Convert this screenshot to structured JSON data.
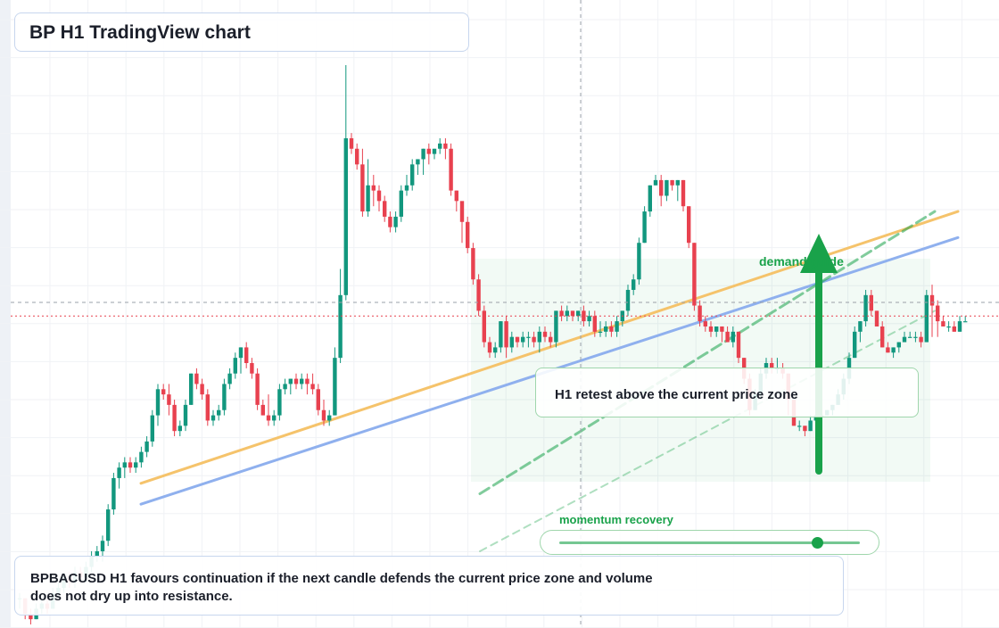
{
  "title": "BP H1 TradingView chart",
  "note": "BPBACUSD H1 favours continuation if the next candle defends the current price zone and volume does not dry up into resistance.",
  "retest_label": "H1 retest above the current price zone",
  "demand_label": "demand guide",
  "momentum": {
    "label": "momentum recovery",
    "level": 0.86
  },
  "colors": {
    "up": "#12977e",
    "down": "#e8414f",
    "accent_green": "#19a24a",
    "orange_line": "#f5c36b",
    "blue_line": "#8fb0ee",
    "current_price_line": "#e8414f"
  },
  "chart_data": {
    "type": "candlestick",
    "symbol": "BPBACUSD",
    "timeframe": "H1",
    "axes_labels_visible": false,
    "ylim": [
      0,
      100
    ],
    "current_price": 59,
    "candles": [
      [
        5,
        5,
        6,
        3
      ],
      [
        5,
        2,
        5,
        1
      ],
      [
        2,
        1,
        3,
        0
      ],
      [
        1,
        3,
        4,
        1
      ],
      [
        3,
        4,
        5,
        2
      ],
      [
        4,
        3,
        5,
        2
      ],
      [
        3,
        6,
        7,
        3
      ],
      [
        6,
        7,
        8,
        5
      ],
      [
        7,
        9,
        10,
        6
      ],
      [
        9,
        8,
        10,
        7
      ],
      [
        8,
        10,
        11,
        7
      ],
      [
        10,
        9,
        11,
        8
      ],
      [
        9,
        11,
        12,
        8
      ],
      [
        11,
        13,
        14,
        10
      ],
      [
        13,
        14,
        15,
        12
      ],
      [
        14,
        16,
        17,
        12
      ],
      [
        16,
        22,
        23,
        15
      ],
      [
        22,
        28,
        29,
        21
      ],
      [
        28,
        30,
        31,
        26
      ],
      [
        30,
        31,
        32,
        28
      ],
      [
        31,
        30,
        32,
        29
      ],
      [
        30,
        31,
        32,
        29
      ],
      [
        31,
        33,
        34,
        30
      ],
      [
        33,
        35,
        36,
        32
      ],
      [
        35,
        40,
        41,
        34
      ],
      [
        40,
        45,
        46,
        38
      ],
      [
        45,
        44,
        46,
        43
      ],
      [
        44,
        42,
        46,
        40
      ],
      [
        42,
        37,
        43,
        36
      ],
      [
        37,
        38,
        39,
        36
      ],
      [
        38,
        42,
        43,
        37
      ],
      [
        42,
        48,
        48,
        42
      ],
      [
        48,
        46,
        49,
        45
      ],
      [
        46,
        44,
        47,
        43
      ],
      [
        44,
        39,
        45,
        38
      ],
      [
        39,
        40,
        41,
        38
      ],
      [
        40,
        41,
        42,
        39
      ],
      [
        41,
        46,
        47,
        40
      ],
      [
        46,
        48,
        49,
        45
      ],
      [
        48,
        51,
        52,
        47
      ],
      [
        51,
        53,
        53,
        48
      ],
      [
        53,
        50,
        54,
        49
      ],
      [
        50,
        48,
        51,
        47
      ],
      [
        48,
        42,
        49,
        41
      ],
      [
        42,
        40,
        43,
        40
      ],
      [
        40,
        39,
        44,
        38
      ],
      [
        39,
        40,
        41,
        38
      ],
      [
        40,
        45,
        46,
        39
      ],
      [
        45,
        46,
        47,
        44
      ],
      [
        46,
        47,
        47,
        44
      ],
      [
        47,
        46,
        48,
        45
      ],
      [
        46,
        47,
        48,
        45
      ],
      [
        47,
        46,
        48,
        44
      ],
      [
        46,
        45,
        48,
        44
      ],
      [
        45,
        41,
        46,
        40
      ],
      [
        41,
        39,
        43,
        38
      ],
      [
        39,
        40,
        41,
        38
      ],
      [
        40,
        51,
        53,
        40
      ],
      [
        51,
        63,
        68,
        50
      ],
      [
        63,
        93,
        107,
        62
      ],
      [
        93,
        91,
        94,
        90
      ],
      [
        91,
        88,
        92,
        87
      ],
      [
        88,
        79,
        91,
        78
      ],
      [
        79,
        84,
        89,
        78
      ],
      [
        84,
        83,
        86,
        80
      ],
      [
        83,
        81,
        84,
        79
      ],
      [
        81,
        78,
        82,
        77
      ],
      [
        78,
        76,
        79,
        75
      ],
      [
        76,
        78,
        79,
        75
      ],
      [
        78,
        83,
        84,
        77
      ],
      [
        83,
        84,
        86,
        82
      ],
      [
        84,
        88,
        89,
        83
      ],
      [
        88,
        89,
        89,
        86
      ],
      [
        89,
        91,
        91,
        86
      ],
      [
        91,
        90,
        92,
        88
      ],
      [
        90,
        91,
        91,
        89
      ],
      [
        91,
        92,
        93,
        90
      ],
      [
        92,
        91,
        93,
        89
      ],
      [
        91,
        83,
        92,
        82
      ],
      [
        83,
        81,
        83,
        79
      ],
      [
        81,
        77,
        78,
        73
      ],
      [
        77,
        72,
        78,
        71
      ],
      [
        72,
        66,
        73,
        65
      ],
      [
        66,
        60,
        67,
        59
      ],
      [
        60,
        54,
        61,
        53
      ],
      [
        54,
        52,
        55,
        51
      ],
      [
        52,
        53,
        54,
        51
      ],
      [
        53,
        58,
        58,
        52
      ],
      [
        58,
        53,
        59,
        51
      ],
      [
        53,
        55,
        56,
        52
      ],
      [
        55,
        54,
        55,
        53
      ],
      [
        54,
        55,
        56,
        53
      ],
      [
        55,
        55,
        56,
        53
      ],
      [
        55,
        54,
        56,
        53
      ],
      [
        54,
        56,
        57,
        52
      ],
      [
        56,
        55,
        57,
        54
      ],
      [
        55,
        54,
        56,
        53
      ],
      [
        54,
        60,
        60,
        53
      ],
      [
        60,
        59,
        61,
        58
      ],
      [
        59,
        60,
        61,
        58
      ],
      [
        60,
        59,
        60,
        58
      ],
      [
        59,
        60,
        60,
        58
      ],
      [
        60,
        58,
        61,
        57
      ],
      [
        58,
        59,
        60,
        57
      ],
      [
        59,
        56,
        60,
        55
      ],
      [
        56,
        56,
        58,
        55
      ],
      [
        56,
        57,
        58,
        55
      ],
      [
        57,
        56,
        58,
        55
      ],
      [
        56,
        58,
        59,
        55
      ],
      [
        58,
        60,
        60,
        57
      ],
      [
        60,
        64,
        65,
        59
      ],
      [
        64,
        66,
        67,
        63
      ],
      [
        66,
        73,
        74,
        65
      ],
      [
        73,
        79,
        80,
        73
      ],
      [
        79,
        84,
        84,
        78
      ],
      [
        84,
        85,
        86,
        84
      ],
      [
        85,
        82,
        86,
        80
      ],
      [
        82,
        85,
        85,
        81
      ],
      [
        85,
        84,
        85,
        83
      ],
      [
        84,
        85,
        85,
        81
      ],
      [
        85,
        80,
        85,
        79
      ],
      [
        80,
        73,
        80,
        72
      ],
      [
        73,
        61,
        73,
        60
      ],
      [
        61,
        58,
        62,
        57
      ],
      [
        58,
        57,
        59,
        56
      ],
      [
        57,
        56,
        58,
        55
      ],
      [
        56,
        57,
        57,
        55
      ],
      [
        57,
        56,
        57,
        54
      ],
      [
        56,
        54,
        57,
        54
      ],
      [
        54,
        56,
        57,
        53
      ],
      [
        56,
        51,
        56,
        50
      ],
      [
        51,
        47,
        51,
        46
      ],
      [
        47,
        41,
        48,
        40
      ],
      [
        41,
        44,
        45,
        41
      ],
      [
        44,
        48,
        49,
        43
      ],
      [
        48,
        50,
        51,
        47
      ],
      [
        50,
        49,
        51,
        48
      ],
      [
        49,
        49,
        51,
        48
      ],
      [
        49,
        48,
        50,
        47
      ],
      [
        48,
        43,
        48,
        40
      ],
      [
        43,
        38,
        43,
        38
      ],
      [
        38,
        38,
        39,
        37
      ],
      [
        38,
        37,
        38,
        36
      ],
      [
        37,
        39,
        40,
        37
      ],
      [
        39,
        40,
        40,
        38
      ],
      [
        40,
        40,
        41,
        39
      ],
      [
        40,
        41,
        41,
        40
      ],
      [
        41,
        42,
        42,
        40
      ],
      [
        42,
        44,
        45,
        42
      ],
      [
        44,
        47,
        48,
        43
      ],
      [
        47,
        51,
        52,
        46
      ],
      [
        51,
        56,
        57,
        51
      ],
      [
        56,
        58,
        58,
        54
      ],
      [
        58,
        63,
        64,
        57
      ],
      [
        63,
        60,
        64,
        59
      ],
      [
        60,
        57,
        60,
        57
      ],
      [
        57,
        53,
        58,
        53
      ],
      [
        53,
        52,
        54,
        52
      ],
      [
        52,
        53,
        53,
        51
      ],
      [
        53,
        54,
        54,
        52
      ],
      [
        54,
        55,
        56,
        54
      ],
      [
        55,
        55,
        56,
        55
      ],
      [
        55,
        55,
        56,
        54
      ],
      [
        55,
        54,
        56,
        53
      ],
      [
        54,
        63,
        64,
        54
      ],
      [
        63,
        61,
        65,
        55
      ],
      [
        61,
        58,
        62,
        55
      ],
      [
        58,
        57,
        59,
        57
      ],
      [
        57,
        57,
        58,
        56
      ],
      [
        57,
        56,
        58,
        56
      ],
      [
        56,
        58,
        59,
        56
      ],
      [
        58,
        58,
        59,
        58
      ]
    ],
    "trendlines": [
      {
        "name": "",
        "style": "orange",
        "from": [
          0,
          16
        ],
        "to": [
          168,
          68
        ]
      },
      {
        "name": "",
        "style": "blue",
        "from": [
          0,
          12
        ],
        "to": [
          168,
          63
        ]
      },
      {
        "name": "",
        "style": "green-dashed",
        "from": [
          68,
          14
        ],
        "to": [
          158,
          68
        ]
      },
      {
        "name": "",
        "style": "green-dashed-thin",
        "from": [
          68,
          3
        ],
        "to": [
          158,
          49
        ]
      }
    ]
  }
}
